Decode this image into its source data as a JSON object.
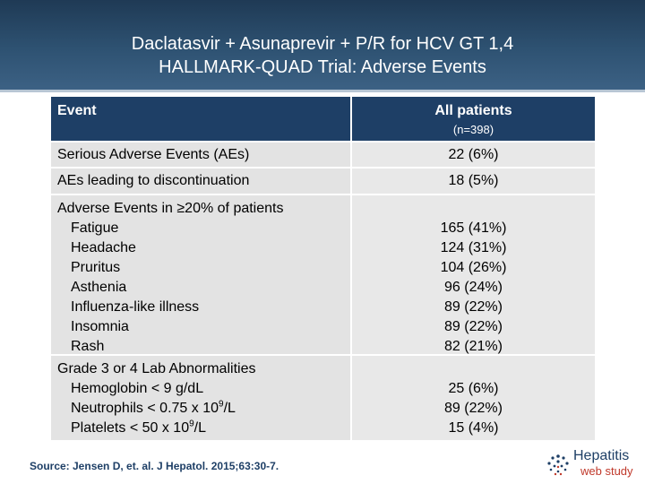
{
  "slide": {
    "title_line1": "Daclatasvir + Asunaprevir + P/R for HCV GT 1,4",
    "title_line2": "HALLMARK-QUAD Trial: Adverse Events"
  },
  "table": {
    "header": {
      "event": "Event",
      "all_patients": "All patients",
      "n": "(n=398)"
    },
    "rows": [
      {
        "event": "Serious Adverse Events (AEs)",
        "value": "22 (6%)"
      },
      {
        "event": "AEs leading to discontinuation",
        "value": "18 (5%)"
      }
    ],
    "ae_group": {
      "heading": "Adverse Events in ≥20% of patients",
      "items": [
        {
          "event": "Fatigue",
          "value": "165 (41%)"
        },
        {
          "event": "Headache",
          "value": "124 (31%)"
        },
        {
          "event": "Pruritus",
          "value": "104 (26%)"
        },
        {
          "event": "Asthenia",
          "value": "96 (24%)"
        },
        {
          "event": "Influenza-like illness",
          "value": "89 (22%)"
        },
        {
          "event": "Insomnia",
          "value": "89 (22%)"
        },
        {
          "event": "Rash",
          "value": "82 (21%)"
        }
      ]
    },
    "lab_group": {
      "heading": "Grade 3 or 4 Lab Abnormalities",
      "items": [
        {
          "event_prefix": "Hemoglobin < 9 g/dL",
          "event_exp": "",
          "event_suffix": "",
          "value": "25 (6%)"
        },
        {
          "event_prefix": "Neutrophils < 0.75 x 10",
          "event_exp": "9",
          "event_suffix": "/L",
          "value": "89 (22%)"
        },
        {
          "event_prefix": "Platelets < 50 x 10",
          "event_exp": "9",
          "event_suffix": "/L",
          "value": "15 (4%)"
        }
      ]
    }
  },
  "footer": {
    "source": "Source: Jensen D, et. al. J Hepatol. 2015;63:30-7.",
    "logo_line1": "Hepatitis",
    "logo_line2": "web study"
  },
  "colors": {
    "header_bg": "#1e3f66",
    "row_bg": "#e3e3e3",
    "logo_accent": "#c0392b"
  }
}
